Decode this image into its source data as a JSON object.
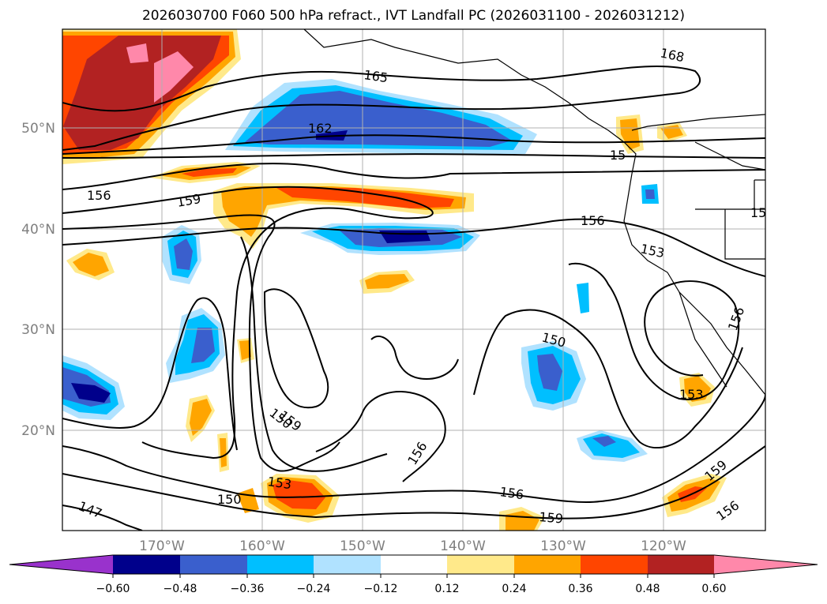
{
  "title": "2026030700 F060 500 hPa refract., IVT Landfall PC (2026031100 - 2026031212)",
  "map": {
    "lat_labels": [
      "50°N",
      "40°N",
      "30°N",
      "20°N"
    ],
    "lon_labels": [
      "170°W",
      "160°W",
      "150°W",
      "140°W",
      "130°W",
      "120°W"
    ],
    "contour_labels": [
      "168",
      "165",
      "162",
      "159",
      "156",
      "156",
      "153",
      "150",
      "150",
      "153",
      "156",
      "159",
      "153",
      "150",
      "156",
      "147",
      "159",
      "156",
      "159",
      "156",
      "15",
      "15"
    ]
  },
  "colorbar": {
    "tick_labels": [
      "−0.60",
      "−0.48",
      "−0.36",
      "−0.24",
      "−0.12",
      "0.12",
      "0.24",
      "0.36",
      "0.48",
      "0.60"
    ],
    "colors": [
      "#9932CC",
      "#00008B",
      "#3A5FCD",
      "#00BFFF",
      "#B0E2FF",
      "#FFFFFF",
      "#FFE98A",
      "#FFA500",
      "#FF4500",
      "#B22222",
      "#FF88AA"
    ]
  }
}
